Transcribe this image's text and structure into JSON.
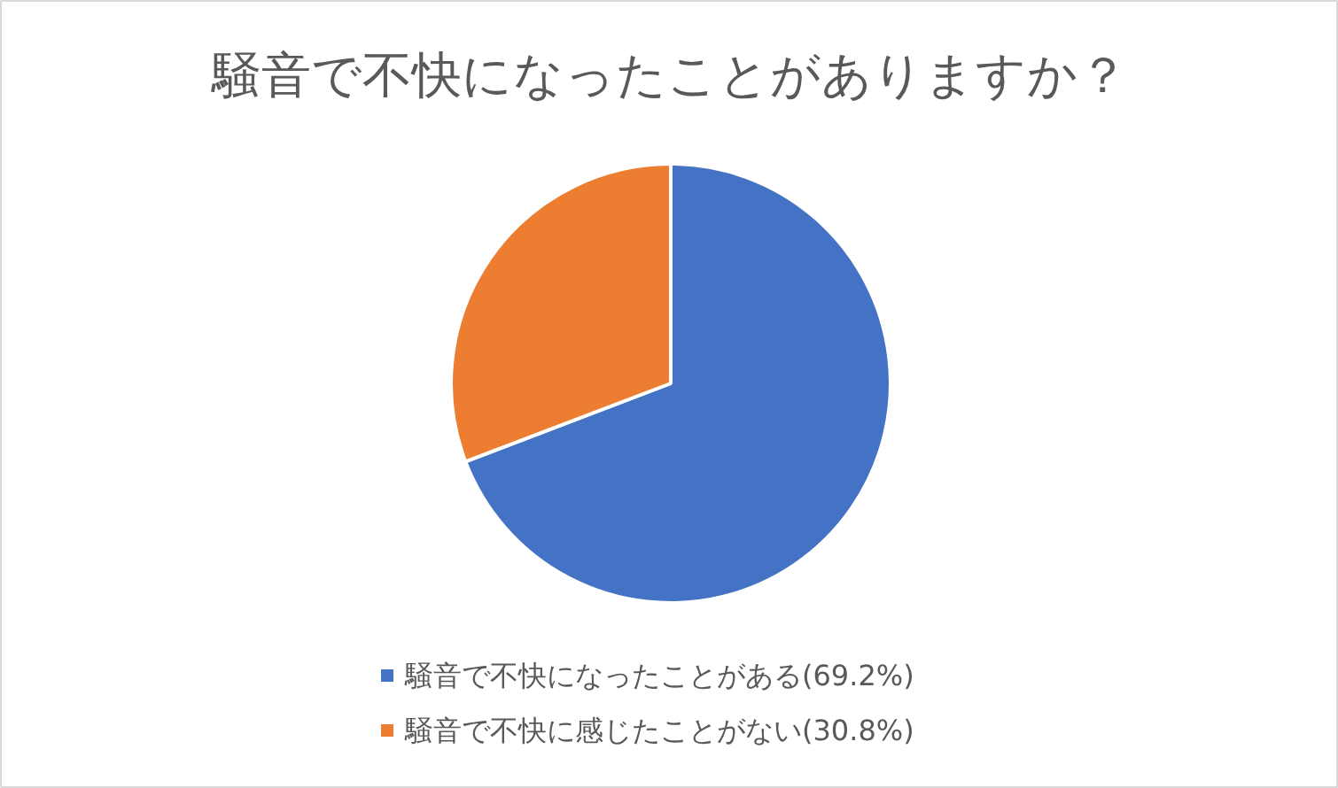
{
  "chart_data": {
    "type": "pie",
    "title": "騒音で不快になったことがありますか？",
    "categories": [
      "騒音で不快になったことがある(69.2%)",
      "騒音で不快に感じたことがない(30.8%)"
    ],
    "values": [
      69.2,
      30.8
    ],
    "colors": [
      "#4472c4",
      "#ed7d31"
    ],
    "legend": "bottom"
  }
}
